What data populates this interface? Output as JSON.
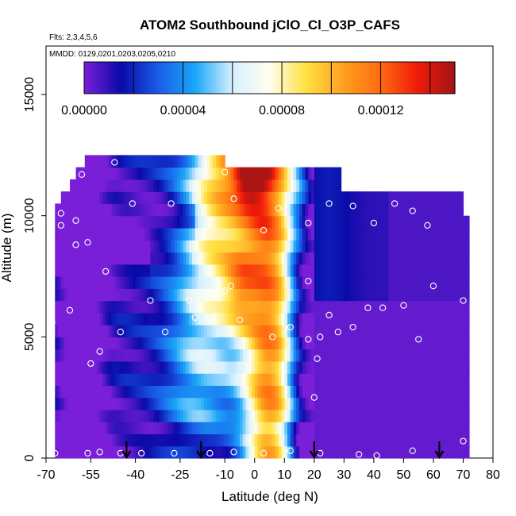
{
  "chart_data": {
    "type": "heatmap",
    "title": "ATOM2 Southbound jClO_Cl_O3P_CAFS",
    "flights_label": "Flts: 2,3,4,5,6",
    "dates_label": "MMDD: 0129,0201,0203,0205,0210",
    "xlabel": "Latitude (deg N)",
    "ylabel": "Altitude (m)",
    "xlim": [
      -70,
      80
    ],
    "ylim": [
      0,
      17000
    ],
    "x_ticks": [
      -70,
      -55,
      -40,
      -25,
      -10,
      0,
      10,
      20,
      30,
      40,
      50,
      60,
      70,
      80
    ],
    "y_ticks": [
      0,
      5000,
      10000,
      15000
    ],
    "colorbar": {
      "range": [
        0,
        0.00015
      ],
      "tick_values": [
        0,
        4e-05,
        8e-05,
        0.00012
      ],
      "tick_labels": [
        "0.00000",
        "0.00004",
        "0.00008",
        "0.00012"
      ],
      "colors": [
        "#7a1fd8",
        "#0a0aa8",
        "#1a5ce8",
        "#1aa8f8",
        "#d8f0ff",
        "#fffff0",
        "#ffe040",
        "#ffa020",
        "#ff6a10",
        "#f01a0a",
        "#a01515"
      ]
    },
    "altitude_levels": [
      250,
      750,
      1250,
      1750,
      2250,
      2750,
      3250,
      3750,
      4250,
      4750,
      5250,
      5750,
      6250,
      6750,
      7250,
      7750,
      8250,
      8750,
      9250,
      9750,
      10250,
      10750,
      11250,
      11750,
      12250
    ],
    "level_lat_ranges": [
      [
        -67,
        72
      ],
      [
        -67,
        72
      ],
      [
        -67,
        72
      ],
      [
        -67,
        72
      ],
      [
        -67,
        72
      ],
      [
        -67,
        72
      ],
      [
        -67,
        72
      ],
      [
        -67,
        72
      ],
      [
        -67,
        72
      ],
      [
        -67,
        72
      ],
      [
        -67,
        72
      ],
      [
        -67,
        72
      ],
      [
        -67,
        72
      ],
      [
        -67,
        72
      ],
      [
        -67,
        72
      ],
      [
        -67,
        72
      ],
      [
        -67,
        72
      ],
      [
        -67,
        72
      ],
      [
        -67,
        72
      ],
      [
        -67,
        72
      ],
      [
        -67,
        70
      ],
      [
        -65,
        70
      ],
      [
        -62,
        29
      ],
      [
        -60,
        29
      ],
      [
        -57,
        -10
      ]
    ],
    "field_model": "estimated j-value (s^-1) by latitude and altitude read from the color scale",
    "arrows_latitude": [
      -43,
      -18,
      20,
      62
    ],
    "observations": [
      {
        "lat": -67,
        "alt": 200
      },
      {
        "lat": -56,
        "alt": 200
      },
      {
        "lat": -52,
        "alt": 250
      },
      {
        "lat": -45,
        "alt": 200
      },
      {
        "lat": -38,
        "alt": 200
      },
      {
        "lat": -27,
        "alt": 200
      },
      {
        "lat": -15,
        "alt": 200
      },
      {
        "lat": -7,
        "alt": 250
      },
      {
        "lat": 3,
        "alt": 200
      },
      {
        "lat": 12,
        "alt": 300
      },
      {
        "lat": 22,
        "alt": 200
      },
      {
        "lat": 35,
        "alt": 150
      },
      {
        "lat": 41,
        "alt": 100
      },
      {
        "lat": 53,
        "alt": 300
      },
      {
        "lat": 70,
        "alt": 700
      },
      {
        "lat": -52,
        "alt": 4400
      },
      {
        "lat": -55,
        "alt": 3900
      },
      {
        "lat": -45,
        "alt": 5200
      },
      {
        "lat": -30,
        "alt": 5200
      },
      {
        "lat": -20,
        "alt": 5800
      },
      {
        "lat": -5,
        "alt": 5700
      },
      {
        "lat": 6,
        "alt": 5000
      },
      {
        "lat": 12,
        "alt": 5400
      },
      {
        "lat": 18,
        "alt": 4900
      },
      {
        "lat": 22,
        "alt": 5000
      },
      {
        "lat": 25,
        "alt": 5900
      },
      {
        "lat": 28,
        "alt": 5200
      },
      {
        "lat": 33,
        "alt": 5400
      },
      {
        "lat": 38,
        "alt": 6200
      },
      {
        "lat": 43,
        "alt": 6200
      },
      {
        "lat": 50,
        "alt": 6300
      },
      {
        "lat": 55,
        "alt": 4900
      },
      {
        "lat": 60,
        "alt": 7100
      },
      {
        "lat": 70,
        "alt": 6500
      },
      {
        "lat": -68,
        "alt": 5600
      },
      {
        "lat": -62,
        "alt": 6100
      },
      {
        "lat": -35,
        "alt": 6500
      },
      {
        "lat": -22,
        "alt": 6500
      },
      {
        "lat": -10,
        "alt": 6900
      },
      {
        "lat": -8,
        "alt": 7100
      },
      {
        "lat": 18,
        "alt": 7300
      },
      {
        "lat": -60,
        "alt": 8800
      },
      {
        "lat": -56,
        "alt": 8900
      },
      {
        "lat": -50,
        "alt": 7700
      },
      {
        "lat": 3,
        "alt": 9400
      },
      {
        "lat": -65,
        "alt": 9600
      },
      {
        "lat": -60,
        "alt": 9800
      },
      {
        "lat": -41,
        "alt": 10500
      },
      {
        "lat": -28,
        "alt": 10500
      },
      {
        "lat": -7,
        "alt": 10700
      },
      {
        "lat": 8,
        "alt": 10300
      },
      {
        "lat": 18,
        "alt": 9700
      },
      {
        "lat": 25,
        "alt": 10500
      },
      {
        "lat": 33,
        "alt": 10400
      },
      {
        "lat": 40,
        "alt": 9700
      },
      {
        "lat": 47,
        "alt": 10500
      },
      {
        "lat": 53,
        "alt": 10200
      },
      {
        "lat": 58,
        "alt": 9600
      },
      {
        "lat": 65,
        "alt": 11300
      },
      {
        "lat": -65,
        "alt": 10100
      },
      {
        "lat": -58,
        "alt": 11700
      },
      {
        "lat": -47,
        "alt": 12200
      },
      {
        "lat": -10,
        "alt": 11800
      },
      {
        "lat": 20,
        "alt": 2500
      },
      {
        "lat": 21,
        "alt": 4100
      }
    ]
  }
}
